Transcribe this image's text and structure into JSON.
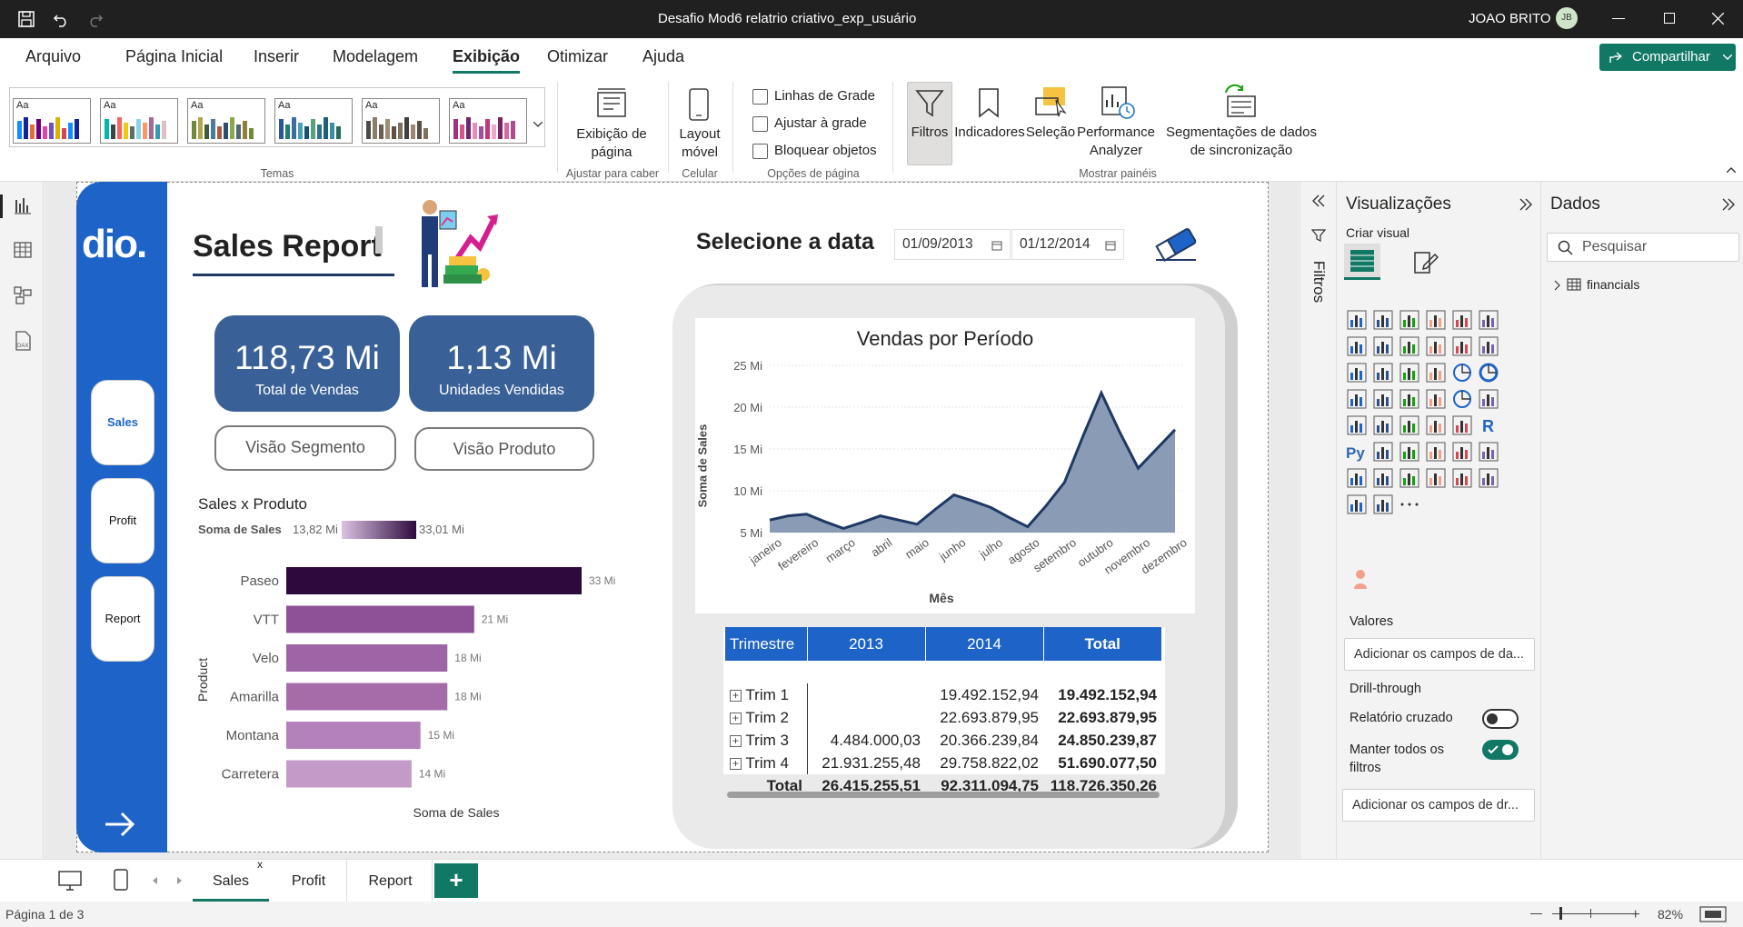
{
  "window": {
    "title": "Desafio Mod6 relatrio criativo_exp_usuário",
    "user": "JOAO BRITO",
    "initials": "JB"
  },
  "menu": [
    "Arquivo",
    "Página Inicial",
    "Inserir",
    "Modelagem",
    "Exibição",
    "Otimizar",
    "Ajuda"
  ],
  "menu_active": "Exibição",
  "share_label": "Compartilhar",
  "ribbon": {
    "themes_label": "Temas",
    "page_view_label": "Exibição de página",
    "fit_label": "Ajustar para caber",
    "mobile_label": "Layout móvel",
    "cell_label": "Celular",
    "gridlines_label": "Linhas de Grade",
    "snap_label": "Ajustar à grade",
    "lock_label": "Bloquear objetos",
    "page_options_label": "Opções de página",
    "filters_label": "Filtros",
    "bookmarks_label": "Indicadores",
    "selection_label": "Seleção",
    "perf_label": "Performance Analyzer",
    "sync_label": "Segmentações de dados de sincronização",
    "show_panes_label": "Mostrar painéis",
    "theme_aa": "Aa"
  },
  "report": {
    "logo": "dio.",
    "title": "Sales Report",
    "nav": [
      "Sales",
      "Profit",
      "Report"
    ],
    "kpi1": {
      "value": "118,73 Mi",
      "label": "Total de Vendas"
    },
    "kpi2": {
      "value": "1,13 Mi",
      "label": "Unidades Vendidas"
    },
    "btn_segment": "Visão Segmento",
    "btn_product": "Visão Produto",
    "date_title": "Selecione a data",
    "date_start": "01/09/2013",
    "date_end": "01/12/2014"
  },
  "chart_data": [
    {
      "type": "bar",
      "title": "Sales x Produto",
      "legend_title": "Soma de  Sales",
      "legend_min": "13,82 Mi",
      "legend_max": "33,01 Mi",
      "categories": [
        "Paseo",
        "VTT",
        "Velo",
        "Amarilla",
        "Montana",
        "Carretera"
      ],
      "values": [
        33,
        21,
        18,
        18,
        15,
        14
      ],
      "data_labels": [
        "33 Mi",
        "21 Mi",
        "18 Mi",
        "18 Mi",
        "15 Mi",
        "14 Mi"
      ],
      "xlabel": "Soma de Sales",
      "ylabel": "Product",
      "colors": [
        "#2d0a3e",
        "#8e5097",
        "#9e64a6",
        "#a56ca9",
        "#b581bd",
        "#c39ac8"
      ]
    },
    {
      "type": "area",
      "title": "Vendas por Período",
      "xlabel": "Mês",
      "ylabel": "Soma de Sales",
      "categories": [
        "janeiro",
        "fevereiro",
        "março",
        "abril",
        "maio",
        "junho",
        "julho",
        "agosto",
        "setembro",
        "outubro",
        "novembro",
        "dezembro"
      ],
      "x": [
        0,
        1,
        2,
        3,
        4,
        5,
        6,
        7,
        8,
        9,
        10,
        11,
        12,
        13,
        14,
        15,
        16,
        17,
        18,
        19,
        20,
        21,
        22
      ],
      "values": [
        6.5,
        7.0,
        7.2,
        6.3,
        5.5,
        6.2,
        7.0,
        6.5,
        6.0,
        7.8,
        9.5,
        8.8,
        8.0,
        6.8,
        5.7,
        8.2,
        11.0,
        16.5,
        21.7,
        17.0,
        12.7,
        15.0,
        17.3
      ],
      "yticks": [
        "25 Mi",
        "20 Mi",
        "15 Mi",
        "10 Mi",
        "5 Mi"
      ],
      "ytick_values": [
        25,
        20,
        15,
        10,
        5
      ],
      "ylim": [
        5,
        25
      ],
      "color": "#1f3864",
      "fill": "#8a9cb5"
    }
  ],
  "matrix": {
    "headers": [
      "Trimestre",
      "2013",
      "2014",
      "Total"
    ],
    "rows": [
      [
        "Trim 1",
        "",
        "19.492.152,94",
        "19.492.152,94"
      ],
      [
        "Trim 2",
        "",
        "22.693.879,95",
        "22.693.879,95"
      ],
      [
        "Trim 3",
        "4.484.000,03",
        "20.366.239,84",
        "24.850.239,87"
      ],
      [
        "Trim 4",
        "21.931.255,48",
        "29.758.822,02",
        "51.690.077,50"
      ]
    ],
    "total": [
      "Total",
      "26.415.255,51",
      "92.311.094,75",
      "118.726.350,26"
    ],
    "expand": "+"
  },
  "filters_pane": "Filtros",
  "viz_pane": {
    "title": "Visualizações",
    "build": "Criar visual",
    "values_label": "Valores",
    "values_placeholder": "Adicionar os campos de da...",
    "drill_label": "Drill-through",
    "cross_report": "Relatório cruzado",
    "keep_filters": "Manter todos os filtros",
    "drill_placeholder": "Adicionar os campos de dr...",
    "more": "···"
  },
  "data_pane": {
    "title": "Dados",
    "search": "Pesquisar",
    "table": "financials"
  },
  "page_tabs": [
    "Sales",
    "Profit",
    "Report"
  ],
  "tab_close": "x",
  "add_tab": "+",
  "status": {
    "page": "Página 1 de 3",
    "zoom": "82%"
  }
}
